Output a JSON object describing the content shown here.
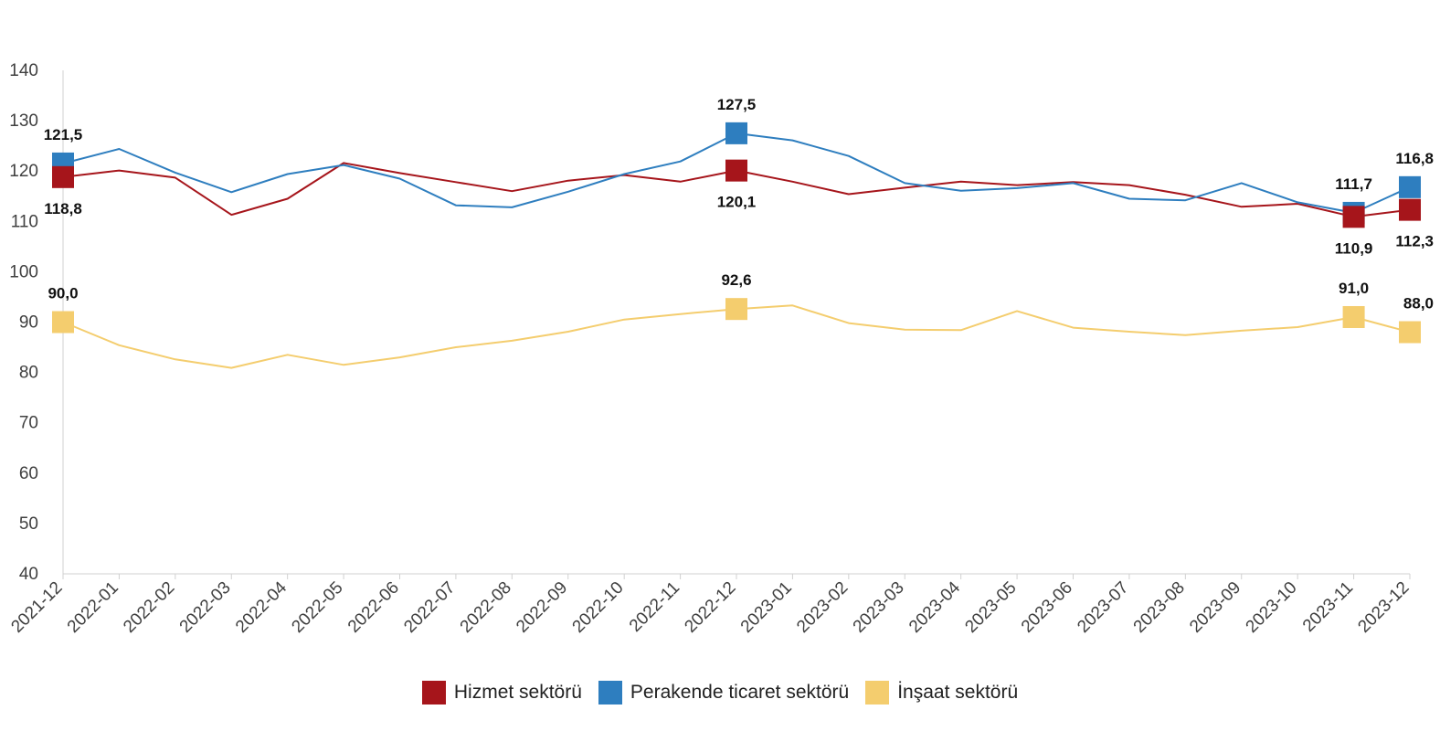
{
  "chart_data": {
    "type": "line",
    "title": "",
    "xlabel": "",
    "ylabel": "",
    "ylim": [
      40,
      140
    ],
    "yticks": [
      40,
      50,
      60,
      70,
      80,
      90,
      100,
      110,
      120,
      130,
      140
    ],
    "grid": false,
    "legend_position": "bottom-center",
    "categories": [
      "2021-12",
      "2022-01",
      "2022-02",
      "2022-03",
      "2022-04",
      "2022-05",
      "2022-06",
      "2022-07",
      "2022-08",
      "2022-09",
      "2022-10",
      "2022-11",
      "2022-12",
      "2023-01",
      "2023-02",
      "2023-03",
      "2023-04",
      "2023-05",
      "2023-06",
      "2023-07",
      "2023-08",
      "2023-09",
      "2023-10",
      "2023-11",
      "2023-12"
    ],
    "series": [
      {
        "name": "Hizmet sektörü",
        "color": "#A6151B",
        "values": [
          118.8,
          120.1,
          118.7,
          111.3,
          114.5,
          121.6,
          119.6,
          117.8,
          116.0,
          118.1,
          119.2,
          117.9,
          120.1,
          117.9,
          115.4,
          116.7,
          117.9,
          117.2,
          117.8,
          117.2,
          115.3,
          112.9,
          113.5,
          110.9,
          112.3
        ],
        "labels": [
          {
            "index": 0,
            "text": "118,8"
          },
          {
            "index": 12,
            "text": "120,1"
          },
          {
            "index": 23,
            "text": "110,9"
          },
          {
            "index": 24,
            "text": "112,3"
          }
        ]
      },
      {
        "name": "Perakende ticaret sektörü",
        "color": "#2E7EBF",
        "values": [
          121.5,
          124.4,
          119.7,
          115.8,
          119.4,
          121.2,
          118.5,
          113.2,
          112.8,
          115.9,
          119.4,
          121.9,
          127.5,
          126.1,
          123.0,
          117.6,
          116.1,
          116.6,
          117.6,
          114.5,
          114.2,
          117.6,
          113.8,
          111.7,
          116.8
        ],
        "labels": [
          {
            "index": 0,
            "text": "121,5"
          },
          {
            "index": 12,
            "text": "127,5"
          },
          {
            "index": 23,
            "text": "111,7"
          },
          {
            "index": 24,
            "text": "116,8"
          }
        ]
      },
      {
        "name": "İnşaat sektörü",
        "color": "#F4CD6E",
        "values": [
          90.0,
          85.4,
          82.6,
          80.9,
          83.5,
          81.5,
          83.0,
          85.0,
          86.3,
          88.1,
          90.5,
          91.6,
          92.6,
          93.3,
          89.8,
          88.5,
          88.4,
          92.2,
          88.9,
          88.1,
          87.4,
          88.3,
          89.0,
          91.0,
          88.0
        ],
        "labels": [
          {
            "index": 0,
            "text": "90,0"
          },
          {
            "index": 12,
            "text": "92,6"
          },
          {
            "index": 23,
            "text": "91,0"
          },
          {
            "index": 24,
            "text": "88,0"
          }
        ]
      }
    ]
  }
}
